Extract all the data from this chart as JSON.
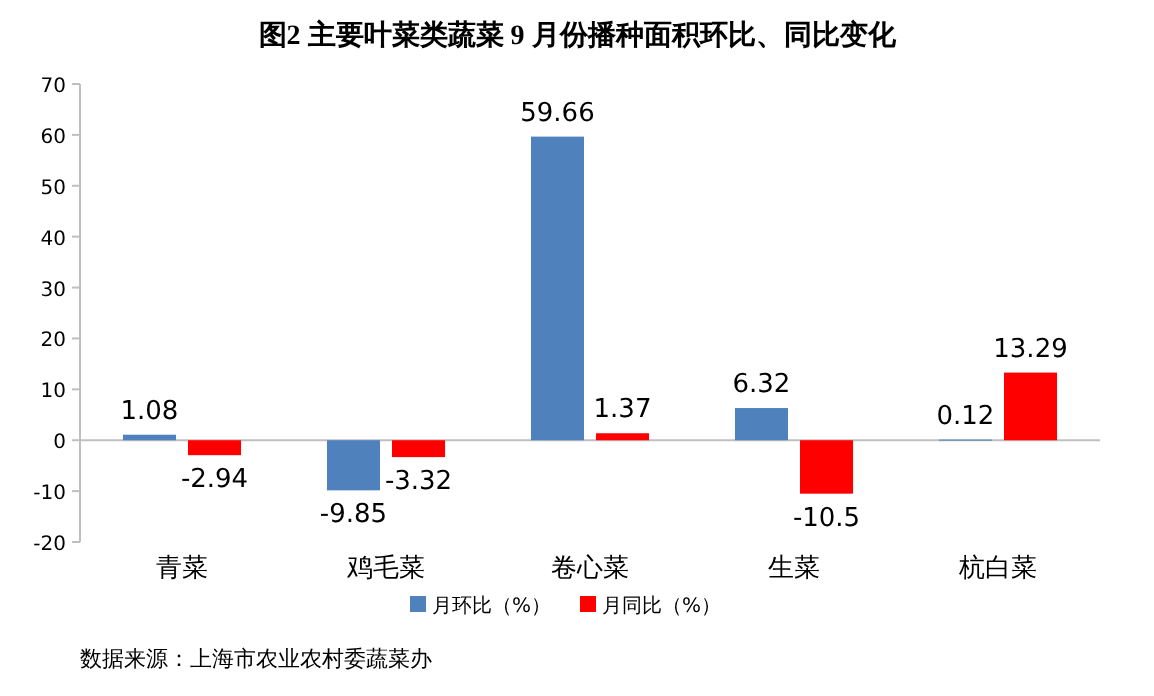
{
  "chart_data": {
    "type": "bar",
    "title": "图2  主要叶菜类蔬菜 9 月份播种面积环比、同比变化",
    "categories": [
      "青菜",
      "鸡毛菜",
      "卷心菜",
      "生菜",
      "杭白菜"
    ],
    "series": [
      {
        "name": "月环比（%）",
        "color": "#4f81bd",
        "values": [
          1.08,
          -9.85,
          59.66,
          6.32,
          0.12
        ]
      },
      {
        "name": "月同比（%）",
        "color": "#ff0000",
        "values": [
          -2.94,
          -3.32,
          1.37,
          -10.5,
          13.29
        ]
      }
    ],
    "ylim": [
      -20,
      70
    ],
    "yticks": [
      -20,
      -10,
      0,
      10,
      20,
      30,
      40,
      50,
      60,
      70
    ],
    "data_labels": true,
    "legend": "bottom",
    "annotations": [
      "数据来源：上海市农业农村委蔬菜办"
    ]
  }
}
